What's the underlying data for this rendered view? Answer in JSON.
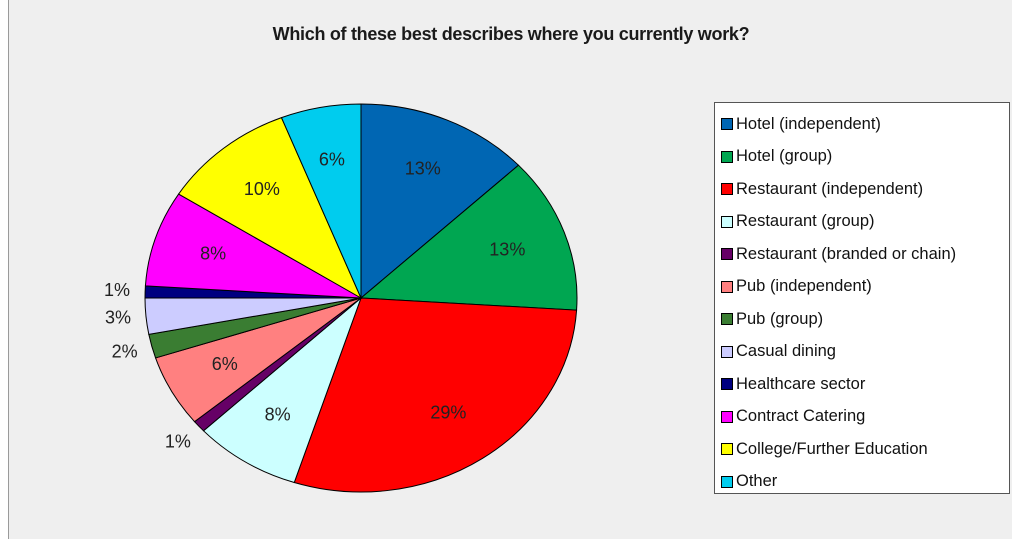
{
  "chart_data": {
    "type": "pie",
    "title": "Which of these best describes where you currently work?",
    "categories": [
      "Hotel (independent)",
      "Hotel (group)",
      "Restaurant (independent)",
      "Restaurant (group)",
      "Restaurant (branded or chain)",
      "Pub (independent)",
      "Pub (group)",
      "Casual dining",
      "Healthcare sector",
      "Contract Catering",
      "College/Further Education",
      "Other"
    ],
    "values": [
      13,
      13,
      29,
      8,
      1,
      6,
      2,
      3,
      1,
      8,
      10,
      6
    ],
    "labels": [
      "13%",
      "13%",
      "29%",
      "8%",
      "1%",
      "6%",
      "2%",
      "3%",
      "1%",
      "8%",
      "10%",
      "6%"
    ],
    "colors": [
      "#0066b3",
      "#00a651",
      "#ff0000",
      "#ccffff",
      "#660066",
      "#ff8080",
      "#3a7d32",
      "#ccccff",
      "#000080",
      "#ff00ff",
      "#ffff00",
      "#00ccee"
    ],
    "legend_position": "right"
  }
}
